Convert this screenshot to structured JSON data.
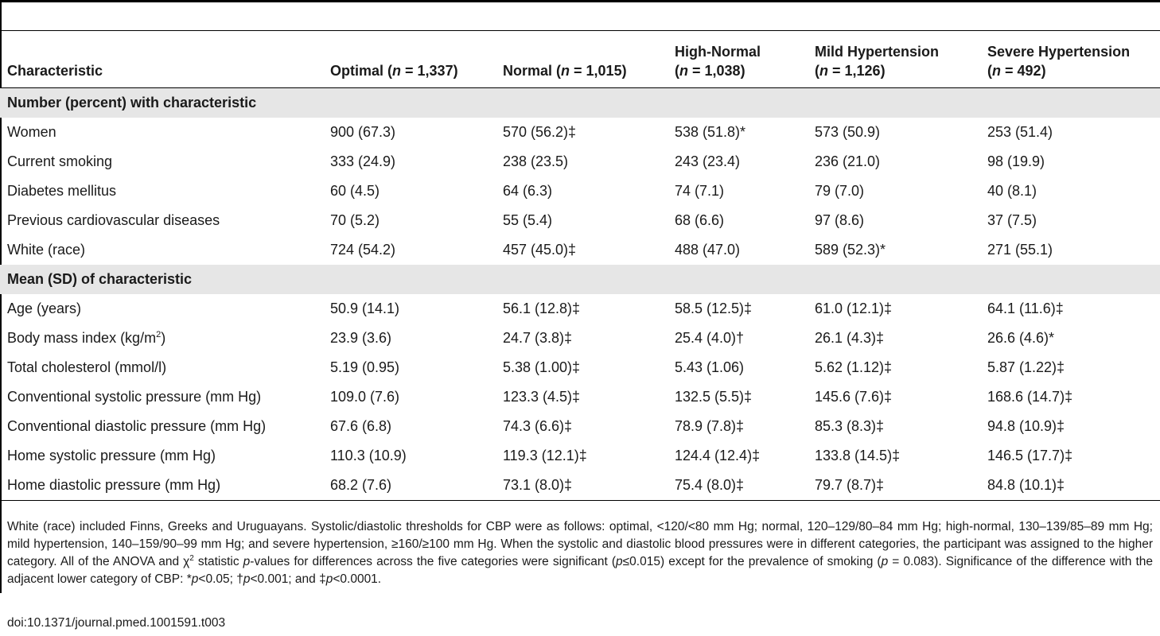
{
  "table": {
    "columns": [
      {
        "label": "Characteristic",
        "n": ""
      },
      {
        "label": "Optimal",
        "n": "1,337"
      },
      {
        "label": "Normal",
        "n": "1,015"
      },
      {
        "label": "High-Normal",
        "n": "1,038"
      },
      {
        "label": "Mild Hypertension",
        "n": "1,126"
      },
      {
        "label": "Severe Hypertension",
        "n": "492"
      }
    ],
    "n_prefix": "n",
    "sections": [
      {
        "title": "Number (percent) with characteristic",
        "rows": [
          {
            "label": "Women",
            "values": [
              "900 (67.3)",
              "570 (56.2)‡",
              "538 (51.8)*",
              "573 (50.9)",
              "253 (51.4)"
            ]
          },
          {
            "label": "Current smoking",
            "values": [
              "333 (24.9)",
              "238 (23.5)",
              "243 (23.4)",
              "236 (21.0)",
              "98 (19.9)"
            ]
          },
          {
            "label": "Diabetes mellitus",
            "values": [
              "60 (4.5)",
              "64 (6.3)",
              "74 (7.1)",
              "79 (7.0)",
              "40 (8.1)"
            ]
          },
          {
            "label": "Previous cardiovascular diseases",
            "values": [
              "70 (5.2)",
              "55 (5.4)",
              "68 (6.6)",
              "97 (8.6)",
              "37 (7.5)"
            ]
          },
          {
            "label": "White (race)",
            "values": [
              "724 (54.2)",
              "457 (45.0)‡",
              "488 (47.0)",
              "589 (52.3)*",
              "271 (55.1)"
            ]
          }
        ]
      },
      {
        "title": "Mean (SD) of characteristic",
        "rows": [
          {
            "label": "Age (years)",
            "values": [
              "50.9 (14.1)",
              "56.1 (12.8)‡",
              "58.5 (12.5)‡",
              "61.0 (12.1)‡",
              "64.1 (11.6)‡"
            ]
          },
          {
            "label": "Body mass index (kg/m",
            "sup": "2",
            "label_after": ")",
            "values": [
              "23.9 (3.6)",
              "24.7 (3.8)‡",
              "25.4 (4.0)†",
              "26.1 (4.3)‡",
              "26.6 (4.6)*"
            ]
          },
          {
            "label": "Total cholesterol (mmol/l)",
            "values": [
              "5.19 (0.95)",
              "5.38 (1.00)‡",
              "5.43 (1.06)",
              "5.62 (1.12)‡",
              "5.87 (1.22)‡"
            ]
          },
          {
            "label": "Conventional systolic pressure (mm Hg)",
            "values": [
              "109.0 (7.6)",
              "123.3 (4.5)‡",
              "132.5 (5.5)‡",
              "145.6 (7.6)‡",
              "168.6 (14.7)‡"
            ]
          },
          {
            "label": "Conventional diastolic pressure (mm Hg)",
            "values": [
              "67.6 (6.8)",
              "74.3 (6.6)‡",
              "78.9 (7.8)‡",
              "85.3 (8.3)‡",
              "94.8 (10.9)‡"
            ]
          },
          {
            "label": "Home systolic pressure (mm Hg)",
            "values": [
              "110.3 (10.9)",
              "119.3 (12.1)‡",
              "124.4 (12.4)‡",
              "133.8 (14.5)‡",
              "146.5 (17.7)‡"
            ]
          },
          {
            "label": "Home diastolic pressure (mm Hg)",
            "values": [
              "68.2 (7.6)",
              "73.1 (8.0)‡",
              "75.4 (8.0)‡",
              "79.7 (8.7)‡",
              "84.8 (10.1)‡"
            ]
          }
        ]
      }
    ]
  },
  "footnote": {
    "text_1": "White (race) included Finns, Greeks and Uruguayans. Systolic/diastolic thresholds for CBP were as follows: optimal, <120/<80 mm Hg; normal, 120–129/80–84 mm Hg; high-normal, 130–139/85–89 mm Hg; mild hypertension, 140–159/90–99 mm Hg; and severe hypertension, ≥160/≥100 mm Hg. When the systolic and diastolic blood pressures were in different categories, the participant was assigned to the higher category. All of the ANOVA and χ",
    "sup": "2",
    "text_2": " statistic ",
    "italic_1": "p",
    "text_3": "-values for differences across the five categories were significant (",
    "italic_2": "p",
    "text_4": "≤0.015) except for the prevalence of smoking (",
    "italic_3": "p",
    "text_5": " = 0.083). Significance of the difference with the adjacent lower category of CBP: *",
    "italic_4": "p",
    "text_6": "<0.05; †",
    "italic_5": "p",
    "text_7": "<0.001; and ‡",
    "italic_6": "p",
    "text_8": "<0.0001."
  },
  "doi": "doi:10.1371/journal.pmed.1001591.t003"
}
